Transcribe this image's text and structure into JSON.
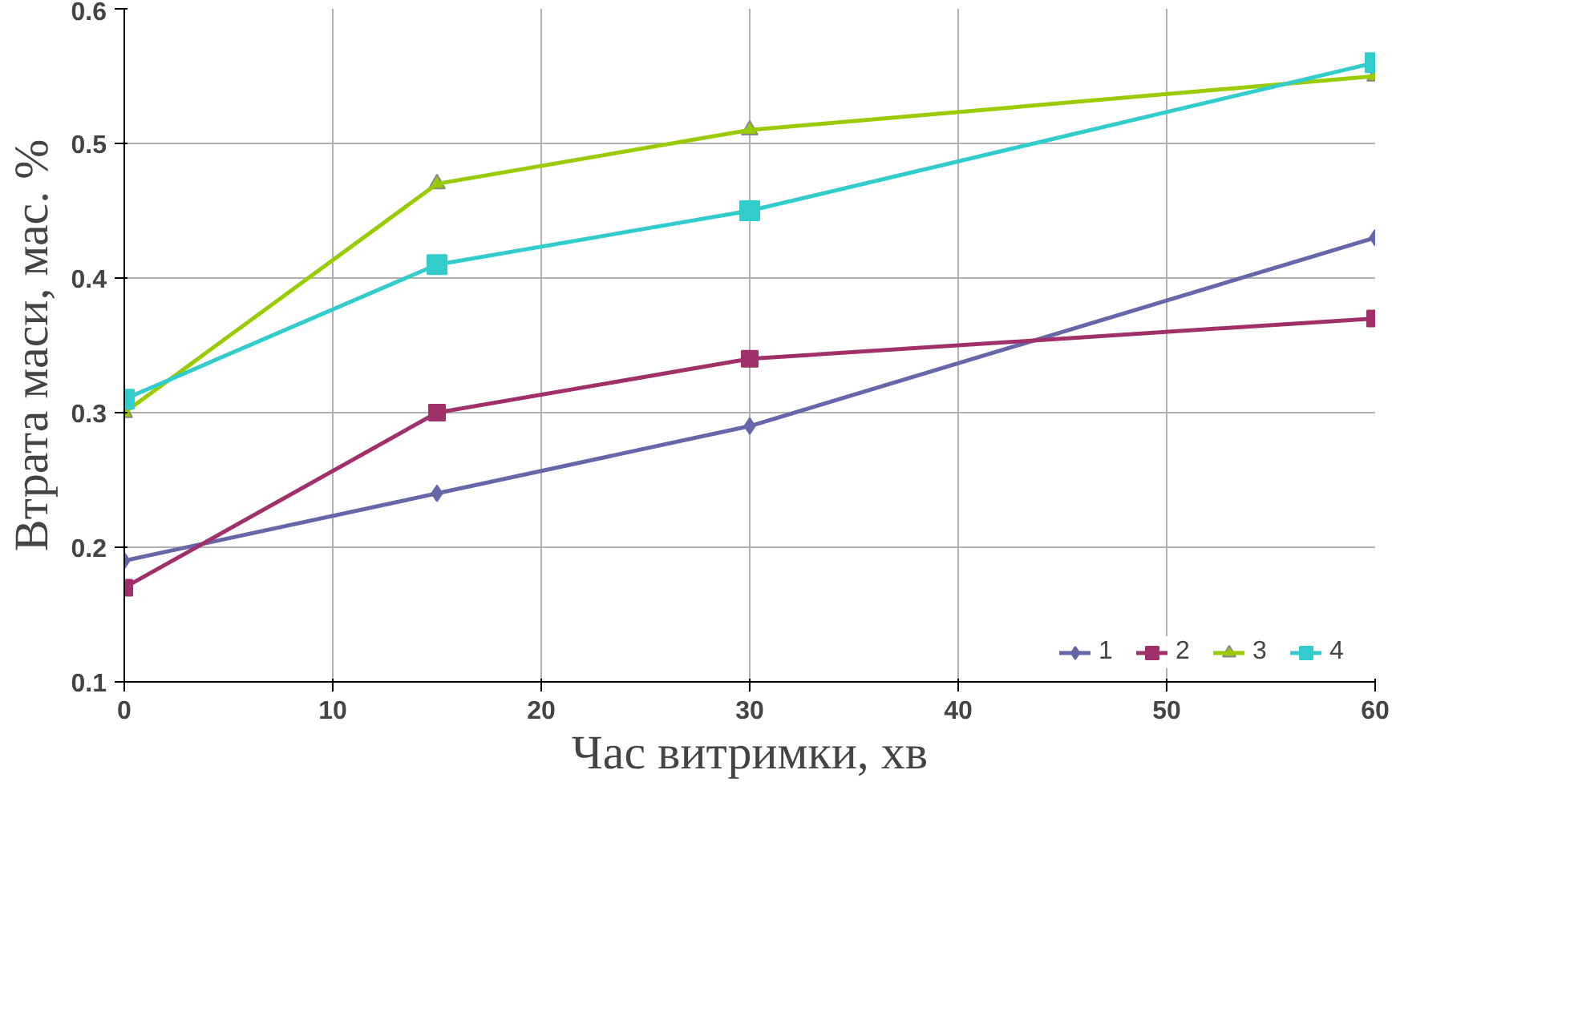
{
  "chart_data": {
    "type": "line",
    "xlabel": "Час витримки, хв",
    "ylabel": "Втрата маси, мас. %",
    "x": [
      0,
      15,
      30,
      60
    ],
    "series": [
      {
        "name": "1",
        "color": "#6666aa",
        "marker": "diamond",
        "values": [
          0.19,
          0.24,
          0.29,
          0.43
        ]
      },
      {
        "name": "2",
        "color": "#a0306a",
        "marker": "square",
        "values": [
          0.17,
          0.3,
          0.34,
          0.37
        ]
      },
      {
        "name": "3",
        "color": "#99cc00",
        "marker": "triangle",
        "values": [
          0.3,
          0.47,
          0.51,
          0.55
        ]
      },
      {
        "name": "4",
        "color": "#33cccc",
        "marker": "square",
        "values": [
          0.31,
          0.41,
          0.45,
          0.56
        ]
      }
    ],
    "xlim": [
      0,
      60
    ],
    "xticks": [
      0,
      10,
      20,
      30,
      40,
      50,
      60
    ],
    "ylim": [
      0.1,
      0.6
    ],
    "yticks": [
      0.1,
      0.2,
      0.3,
      0.4,
      0.5,
      0.6
    ],
    "grid": true,
    "legend": "bottom right",
    "line_style": "solid"
  }
}
